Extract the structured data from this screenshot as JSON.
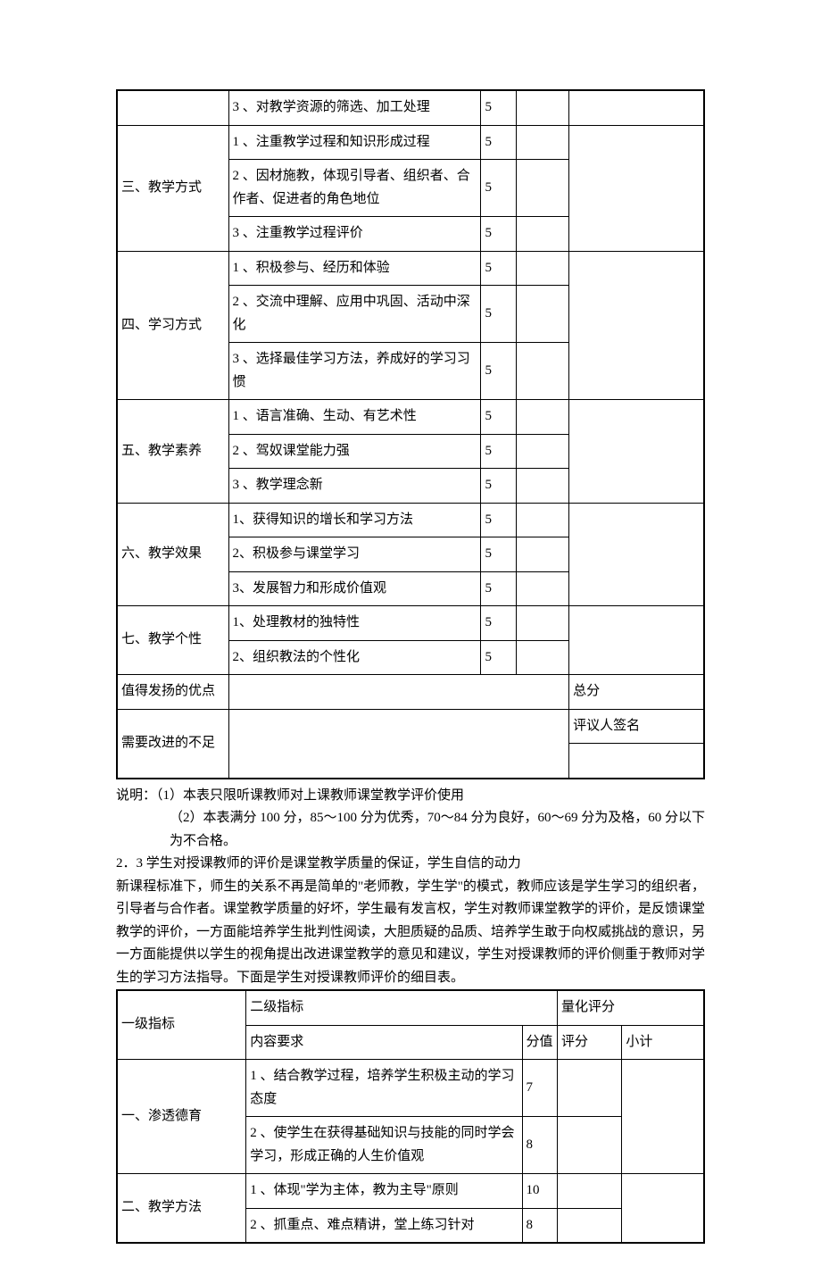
{
  "table1": {
    "categories": [
      {
        "name": "",
        "items": [
          {
            "text": "3 、对教学资源的筛选、加工处理",
            "score": "5"
          }
        ]
      },
      {
        "name": "三、教学方式",
        "items": [
          {
            "text": "1 、注重教学过程和知识形成过程",
            "score": "5"
          },
          {
            "text": "2 、因材施教，体现引导者、组织者、合作者、促进者的角色地位",
            "score": "5"
          },
          {
            "text": "3 、注重教学过程评价",
            "score": "5"
          }
        ]
      },
      {
        "name": "四、学习方式",
        "items": [
          {
            "text": "1 、积极参与、经历和体验",
            "score": "5"
          },
          {
            "text": "2 、交流中理解、应用中巩固、活动中深化",
            "score": "5"
          },
          {
            "text": "3 、选择最佳学习方法，养成好的学习习惯",
            "score": "5"
          }
        ]
      },
      {
        "name": "五、教学素养",
        "items": [
          {
            "text": "1 、语言准确、生动、有艺术性",
            "score": "5"
          },
          {
            "text": "2 、驾奴课堂能力强",
            "score": "5"
          },
          {
            "text": "3 、教学理念新",
            "score": "5"
          }
        ]
      },
      {
        "name": "六、教学效果",
        "items": [
          {
            "text": "1、获得知识的增长和学习方法",
            "score": "5"
          },
          {
            "text": "2、积极参与课堂学习",
            "score": "5"
          },
          {
            "text": "3、发展智力和形成价值观",
            "score": "5"
          }
        ]
      },
      {
        "name": "七、教学个性",
        "items": [
          {
            "text": "1、处理教材的独特性",
            "score": "5"
          },
          {
            "text": "2、组织教法的个性化",
            "score": "5"
          }
        ]
      }
    ],
    "advantages_label": "值得发扬的优点",
    "shortcomings_label": "需要改进的不足",
    "total_label": "总分",
    "signer_label": "评议人签名"
  },
  "explain": {
    "line1": "说明：（1）本表只限听课教师对上课教师课堂教学评价使用",
    "line2": "（2）本表满分 100 分，85～100 分为优秀，70～84 分为良好，60～69 分为及格，60 分以下为不合格。",
    "section": "2．3 学生对授课教师的评价是课堂教学质量的保证，学生自信的动力",
    "para": "新课程标准下，师生的关系不再是简单的\"老师教，学生学\"的模式，教师应该是学生学习的组织者，引导者与合作者。课堂教学质量的好坏，学生最有发言权，学生对教师课堂教学的评价，是反馈课堂教学的评价，一方面能培养学生批判性阅读，大胆质疑的品质、培养学生敢于向权威挑战的意识，另一方面能提供以学生的视角提出改进课堂教学的意见和建议，学生对授课教师的评价侧重于教师对学生的学习方法指导。下面是学生对授课教师评价的细目表。"
  },
  "table2": {
    "header": {
      "col1": "一级指标",
      "col2": "二级指标",
      "col3": "量化评分",
      "sub_content": "内容要求",
      "sub_score": "分值",
      "sub_eval": "评分",
      "sub_sub": "小计"
    },
    "categories": [
      {
        "name": "一、渗透德育",
        "items": [
          {
            "text": "1 、结合教学过程，培养学生积极主动的学习态度",
            "score": "7"
          },
          {
            "text": "2 、使学生在获得基础知识与技能的同时学会学习，形成正确的人生价值观",
            "score": "8"
          }
        ]
      },
      {
        "name": "二、教学方法",
        "items": [
          {
            "text": "1 、体现\"学为主体，教为主导\"原则",
            "score": "10"
          },
          {
            "text": "2 、抓重点、难点精讲，堂上练习针对",
            "score": "8"
          }
        ]
      }
    ]
  }
}
